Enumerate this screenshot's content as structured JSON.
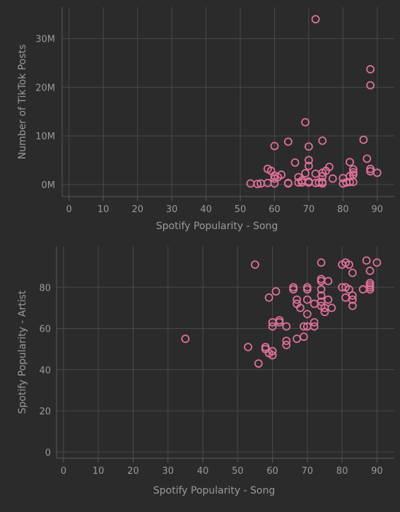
{
  "colors": {
    "background": "#2b2b2b",
    "marker": "#e0709a",
    "grid": "#4a4a4a",
    "text": "#9a9a9a"
  },
  "chart_data": [
    {
      "type": "scatter",
      "xlabel": "Spotify Popularity - Song",
      "ylabel": "Number of TikTok Posts",
      "xlim": [
        -2,
        95
      ],
      "ylim": [
        -2500000,
        36500000
      ],
      "x_ticks": [
        0,
        10,
        20,
        30,
        40,
        50,
        60,
        70,
        80,
        90
      ],
      "x_tick_labels": [
        "0",
        "10",
        "20",
        "30",
        "40",
        "50",
        "60",
        "70",
        "80",
        "90"
      ],
      "y_ticks": [
        0,
        10000000,
        20000000,
        30000000
      ],
      "y_tick_labels": [
        "0M",
        "10M",
        "20M",
        "30M"
      ],
      "grid": true,
      "marker": "open-circle",
      "points": [
        [
          53,
          200000
        ],
        [
          55,
          100000
        ],
        [
          56,
          200000
        ],
        [
          58,
          300000
        ],
        [
          58,
          3200000
        ],
        [
          59,
          2800000
        ],
        [
          60,
          1800000
        ],
        [
          60,
          1200000
        ],
        [
          60,
          200000
        ],
        [
          60,
          7900000
        ],
        [
          61,
          1500000
        ],
        [
          62,
          2000000
        ],
        [
          64,
          200000
        ],
        [
          64,
          300000
        ],
        [
          64,
          8800000
        ],
        [
          66,
          4500000
        ],
        [
          67,
          1500000
        ],
        [
          67,
          400000
        ],
        [
          68,
          800000
        ],
        [
          68,
          400000
        ],
        [
          69,
          12800000
        ],
        [
          69,
          2300000
        ],
        [
          70,
          7800000
        ],
        [
          70,
          5000000
        ],
        [
          70,
          3800000
        ],
        [
          70,
          400000
        ],
        [
          70,
          600000
        ],
        [
          72,
          2200000
        ],
        [
          72,
          300000
        ],
        [
          72,
          34000000
        ],
        [
          73,
          400000
        ],
        [
          74,
          9000000
        ],
        [
          74,
          2400000
        ],
        [
          74,
          1700000
        ],
        [
          74,
          500000
        ],
        [
          74,
          200000
        ],
        [
          75,
          2800000
        ],
        [
          76,
          3600000
        ],
        [
          77,
          1200000
        ],
        [
          80,
          200000
        ],
        [
          80,
          1300000
        ],
        [
          81,
          400000
        ],
        [
          82,
          4600000
        ],
        [
          82,
          1700000
        ],
        [
          82,
          500000
        ],
        [
          83,
          3100000
        ],
        [
          83,
          2500000
        ],
        [
          83,
          2000000
        ],
        [
          83,
          500000
        ],
        [
          86,
          9200000
        ],
        [
          87,
          5300000
        ],
        [
          88,
          23700000
        ],
        [
          88,
          20400000
        ],
        [
          88,
          3200000
        ],
        [
          88,
          2700000
        ],
        [
          90,
          2400000
        ]
      ]
    },
    {
      "type": "scatter",
      "xlabel": "Spotify Popularity - Song",
      "ylabel": "Spotify Popularity - Artist",
      "xlim": [
        -2,
        95
      ],
      "ylim": [
        -3,
        100
      ],
      "x_ticks": [
        0,
        10,
        20,
        30,
        40,
        50,
        60,
        70,
        80,
        90
      ],
      "x_tick_labels": [
        "0",
        "10",
        "20",
        "30",
        "40",
        "50",
        "60",
        "70",
        "80",
        "90"
      ],
      "y_ticks": [
        0,
        20,
        40,
        60,
        80
      ],
      "y_tick_labels": [
        "0",
        "20",
        "40",
        "60",
        "80"
      ],
      "grid": true,
      "marker": "open-circle",
      "points": [
        [
          35,
          55
        ],
        [
          53,
          51
        ],
        [
          55,
          91
        ],
        [
          56,
          43
        ],
        [
          58,
          51
        ],
        [
          58,
          50
        ],
        [
          59,
          75
        ],
        [
          59,
          48
        ],
        [
          60,
          49
        ],
        [
          60,
          47
        ],
        [
          60,
          63
        ],
        [
          60,
          61
        ],
        [
          61,
          78
        ],
        [
          62,
          64
        ],
        [
          62,
          63
        ],
        [
          64,
          61
        ],
        [
          64,
          54
        ],
        [
          64,
          52
        ],
        [
          66,
          80
        ],
        [
          66,
          79
        ],
        [
          67,
          74
        ],
        [
          67,
          72
        ],
        [
          67,
          55
        ],
        [
          68,
          70
        ],
        [
          69,
          61
        ],
        [
          69,
          56
        ],
        [
          70,
          80
        ],
        [
          70,
          79
        ],
        [
          70,
          74
        ],
        [
          70,
          67
        ],
        [
          70,
          61
        ],
        [
          72,
          72
        ],
        [
          72,
          63
        ],
        [
          72,
          61
        ],
        [
          74,
          92
        ],
        [
          74,
          84
        ],
        [
          74,
          83
        ],
        [
          74,
          79
        ],
        [
          74,
          76
        ],
        [
          74,
          73
        ],
        [
          74,
          71
        ],
        [
          75,
          68
        ],
        [
          75,
          70
        ],
        [
          76,
          83
        ],
        [
          76,
          74
        ],
        [
          77,
          70
        ],
        [
          80,
          91
        ],
        [
          80,
          80
        ],
        [
          81,
          92
        ],
        [
          81,
          80
        ],
        [
          81,
          75
        ],
        [
          82,
          91
        ],
        [
          82,
          79
        ],
        [
          83,
          87
        ],
        [
          83,
          76
        ],
        [
          83,
          74
        ],
        [
          83,
          71
        ],
        [
          86,
          79
        ],
        [
          87,
          93
        ],
        [
          88,
          88
        ],
        [
          88,
          82
        ],
        [
          88,
          81
        ],
        [
          88,
          80
        ],
        [
          88,
          79
        ],
        [
          90,
          92
        ]
      ]
    }
  ]
}
